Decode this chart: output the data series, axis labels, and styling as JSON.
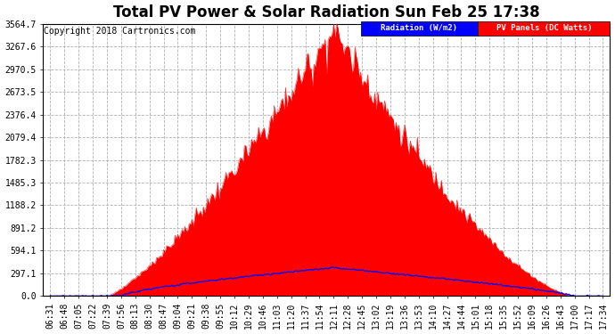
{
  "title": "Total PV Power & Solar Radiation Sun Feb 25 17:38",
  "copyright": "Copyright 2018 Cartronics.com",
  "legend_radiation": "Radiation (W/m2)",
  "legend_pv": "PV Panels (DC Watts)",
  "y_ticks": [
    0.0,
    297.1,
    594.1,
    891.2,
    1188.2,
    1485.3,
    1782.3,
    2079.4,
    2376.4,
    2673.5,
    2970.5,
    3267.6,
    3564.7
  ],
  "y_max": 3564.7,
  "y_min": 0.0,
  "x_labels": [
    "06:31",
    "06:48",
    "07:05",
    "07:22",
    "07:39",
    "07:56",
    "08:13",
    "08:30",
    "08:47",
    "09:04",
    "09:21",
    "09:38",
    "09:55",
    "10:12",
    "10:29",
    "10:46",
    "11:03",
    "11:20",
    "11:37",
    "11:54",
    "12:11",
    "12:28",
    "12:45",
    "13:02",
    "13:19",
    "13:36",
    "13:53",
    "14:10",
    "14:27",
    "14:44",
    "15:01",
    "15:18",
    "15:35",
    "15:52",
    "16:09",
    "16:26",
    "16:43",
    "17:00",
    "17:17",
    "17:34"
  ],
  "background_color": "#ffffff",
  "plot_bg_color": "#ffffff",
  "grid_color": "#b0b0b0",
  "pv_fill_color": "#ff0000",
  "radiation_line_color": "#0000ff",
  "title_fontsize": 12,
  "copyright_fontsize": 7,
  "tick_fontsize": 7,
  "legend_radiation_bg": "#0000ff",
  "legend_pv_bg": "#ff0000"
}
